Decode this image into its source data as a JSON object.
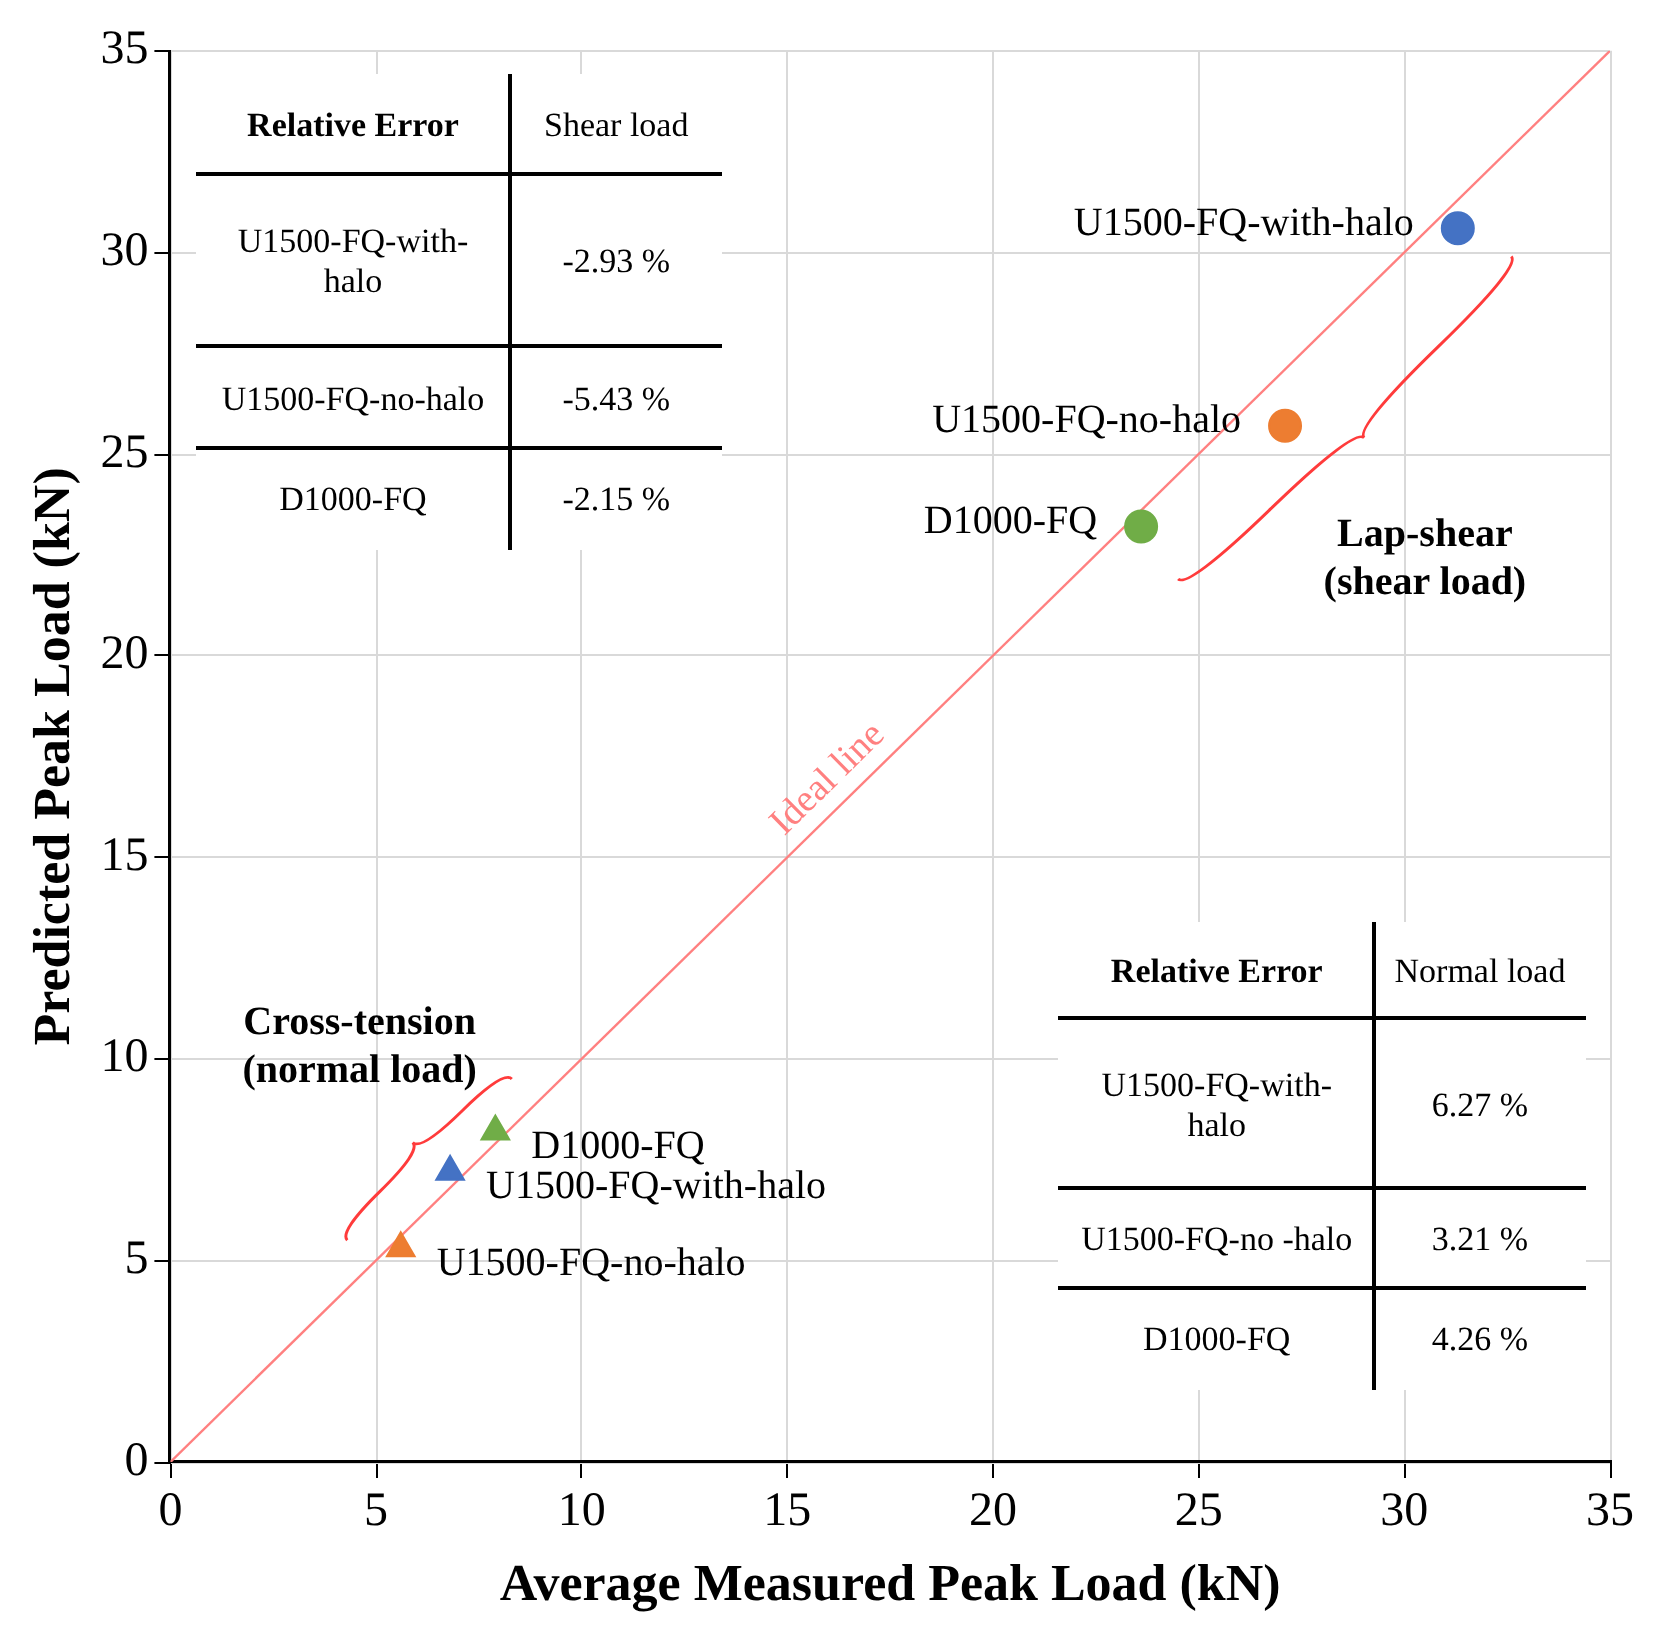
{
  "chart_data": {
    "type": "scatter",
    "xlabel": "Average Measured Peak Load (kN)",
    "ylabel": "Predicted Peak Load (kN)",
    "xlim": [
      0,
      35
    ],
    "ylim": [
      0,
      35
    ],
    "xticks": [
      0,
      5,
      10,
      15,
      20,
      25,
      30,
      35
    ],
    "yticks": [
      0,
      5,
      10,
      15,
      20,
      25,
      30,
      35
    ],
    "grid": true,
    "legend": false,
    "series": [
      {
        "marker": "circle",
        "x": [
          31.3,
          27.1,
          23.6
        ],
        "values": [
          30.6,
          25.7,
          23.2
        ],
        "colors": [
          "#4472c4",
          "#ed7d31",
          "#70ad47"
        ]
      },
      {
        "marker": "triangle",
        "x": [
          6.8,
          5.6,
          7.9
        ],
        "values": [
          7.2,
          5.3,
          8.2
        ],
        "colors": [
          "#4472c4",
          "#ed7d31",
          "#70ad47"
        ]
      },
      {
        "type": "line",
        "name": "Ideal line",
        "color": "#ff8080",
        "marker": "none",
        "x": [
          0,
          35
        ],
        "values": [
          0,
          35
        ]
      }
    ],
    "annotations": [
      {
        "text": "U1500-FQ-with-halo",
        "x": 31.3,
        "y": 30.6
      },
      {
        "text": "U1500-FQ-no-halo",
        "x": 27.1,
        "y": 25.7
      },
      {
        "text": "D1000-FQ",
        "x": 23.6,
        "y": 23.2
      },
      {
        "text": "U1500-FQ-with-halo",
        "x": 6.8,
        "y": 7.2
      },
      {
        "text": "U1500-FQ-no-halo",
        "x": 5.6,
        "y": 5.3
      },
      {
        "text": "D1000-FQ",
        "x": 7.9,
        "y": 8.2
      },
      "Lap-shear (shear load)",
      "Cross-tension (normal load)",
      "Relative Error",
      "Shear load",
      "U1500-FQ-with-halo",
      "-2.93 %",
      "U1500-FQ-no-halo",
      "-5.43 %",
      "D1000-FQ",
      "-2.15 %",
      "Relative Error",
      "Normal load",
      "U1500-FQ-with-halo",
      "6.27 %",
      "U1500-FQ-no -halo",
      "3.21 %",
      "D1000-FQ",
      "4.26 %"
    ]
  }
}
